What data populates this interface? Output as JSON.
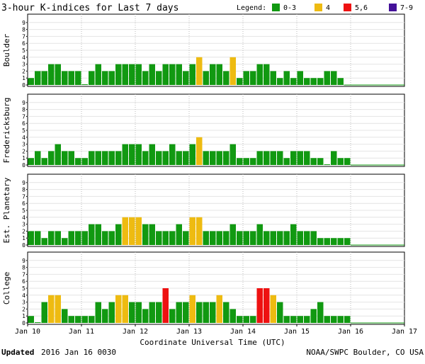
{
  "header": {
    "title": "3-hour K-indices for Last 7 days",
    "legend_label": "Legend:",
    "legend": [
      {
        "label": "0-3",
        "color": "#119911"
      },
      {
        "label": "4",
        "color": "#eebb11"
      },
      {
        "label": "5,6",
        "color": "#ee1111"
      },
      {
        "label": "7-9",
        "color": "#441199"
      }
    ]
  },
  "footer": {
    "updated_label": "Updated",
    "updated_value": "2016 Jan 16 0030",
    "credit": "NOAA/SWPC Boulder, CO USA"
  },
  "chart_data": {
    "type": "bar",
    "xlabel": "Coordinate Universal Time (UTC)",
    "x_ticks": [
      "Jan 10",
      "Jan 11",
      "Jan 12",
      "Jan 13",
      "Jan 14",
      "Jan 15",
      "Jan 16",
      "Jan 17"
    ],
    "y_ticks": [
      "0",
      "1",
      "2",
      "3",
      "4",
      "5",
      "6",
      "7",
      "8",
      "9"
    ],
    "ylim": [
      0,
      9
    ],
    "interval_hours": 3,
    "color_scale": [
      {
        "range": "0-3",
        "color": "#119911"
      },
      {
        "range": "4",
        "color": "#eebb11"
      },
      {
        "range": "5,6",
        "color": "#ee1111"
      },
      {
        "range": "7-9",
        "color": "#441199"
      }
    ],
    "panels": [
      {
        "name": "Boulder",
        "values": [
          1,
          2,
          2,
          3,
          3,
          2,
          2,
          2,
          0,
          2,
          3,
          2,
          2,
          3,
          3,
          3,
          3,
          2,
          3,
          2,
          3,
          3,
          3,
          2,
          3,
          4,
          2,
          3,
          3,
          2,
          4,
          1,
          2,
          2,
          3,
          3,
          2,
          1,
          2,
          1,
          2,
          1,
          1,
          1,
          2,
          2,
          1
        ]
      },
      {
        "name": "Fredericksburg",
        "values": [
          1,
          2,
          1,
          2,
          3,
          2,
          2,
          1,
          1,
          2,
          2,
          2,
          2,
          2,
          3,
          3,
          3,
          2,
          3,
          2,
          2,
          3,
          2,
          2,
          3,
          4,
          2,
          2,
          2,
          2,
          3,
          1,
          1,
          1,
          2,
          2,
          2,
          2,
          1,
          2,
          2,
          2,
          1,
          1,
          0,
          2,
          1,
          1
        ]
      },
      {
        "name": "Est. Planetary",
        "values": [
          2,
          2,
          1,
          2,
          2,
          1,
          2,
          2,
          2,
          3,
          3,
          2,
          2,
          3,
          4,
          4,
          4,
          3,
          3,
          2,
          2,
          2,
          3,
          2,
          4,
          4,
          2,
          2,
          2,
          2,
          3,
          2,
          2,
          2,
          3,
          2,
          2,
          2,
          2,
          3,
          2,
          2,
          2,
          1,
          1,
          1,
          1,
          1
        ]
      },
      {
        "name": "College",
        "values": [
          1,
          0,
          3,
          4,
          4,
          2,
          1,
          1,
          1,
          1,
          3,
          2,
          3,
          4,
          4,
          3,
          3,
          2,
          3,
          3,
          5,
          2,
          3,
          3,
          4,
          3,
          3,
          3,
          4,
          3,
          2,
          1,
          1,
          1,
          5,
          5,
          4,
          3,
          1,
          1,
          1,
          1,
          2,
          3,
          1,
          1,
          1,
          1
        ]
      }
    ]
  }
}
